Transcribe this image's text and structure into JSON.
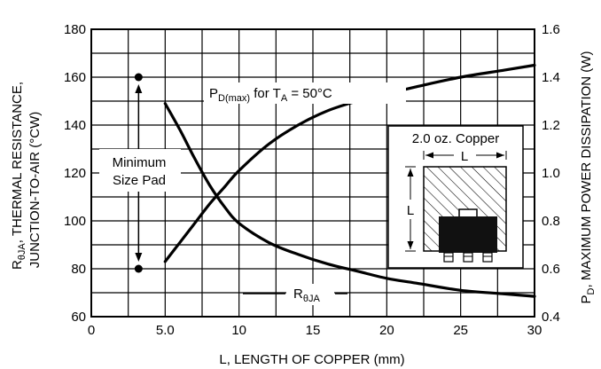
{
  "chart_data": {
    "type": "line",
    "xlabel": "L, LENGTH OF COPPER (mm)",
    "ylabel_left_line1": "RθJA, THERMAL RESISTANCE,",
    "ylabel_left_line2": "JUNCTION-TO-AIR (°CW)",
    "ylabel_right": "PD, MAXIMUM POWER DISSIPATION (W)",
    "xlim": [
      0,
      30
    ],
    "ylim_left": [
      60,
      180
    ],
    "ylim_right": [
      0.4,
      1.6
    ],
    "grid": true,
    "x_ticks": [
      0,
      5,
      10,
      15,
      20,
      25,
      30
    ],
    "x_tick_labels": [
      "0",
      "5.0",
      "10",
      "15",
      "20",
      "25",
      "30"
    ],
    "y_left_ticks": [
      60,
      80,
      100,
      120,
      140,
      160,
      180
    ],
    "y_left_tick_labels": [
      "60",
      "80",
      "100",
      "120",
      "140",
      "160",
      "180"
    ],
    "y_right_ticks": [
      0.4,
      0.6,
      0.8,
      1.0,
      1.2,
      1.4,
      1.6
    ],
    "y_right_tick_labels": [
      "0.4",
      "0.6",
      "0.8",
      "1.0",
      "1.2",
      "1.4",
      "1.6"
    ],
    "series": [
      {
        "name": "RθJA",
        "axis": "left",
        "x": [
          5,
          6,
          7,
          8,
          9,
          10,
          12,
          14,
          16,
          18,
          20,
          22,
          25,
          28,
          30
        ],
        "y": [
          149,
          138,
          126,
          115,
          106,
          99,
          91,
          86,
          82,
          79,
          76,
          74,
          71,
          69.5,
          68.5
        ]
      },
      {
        "name": "PD(max) for TA = 50°C",
        "axis": "right",
        "x": [
          5,
          6,
          7,
          8,
          9,
          10,
          12,
          14,
          16,
          18,
          20,
          22,
          25,
          28,
          30
        ],
        "y": [
          0.63,
          0.71,
          0.79,
          0.87,
          0.94,
          1.01,
          1.12,
          1.2,
          1.26,
          1.3,
          1.33,
          1.36,
          1.4,
          1.43,
          1.45
        ]
      }
    ],
    "annotations": {
      "pd_label": "PD(max) for TA = 50°C",
      "rja_label": "RθJA",
      "min_pad_line1": "Minimum",
      "min_pad_line2": "Size Pad",
      "min_pad_x": 3.2,
      "min_pad_y_top": 160,
      "min_pad_y_bottom": 80,
      "inset_title": "2.0 oz. Copper",
      "inset_dim_h": "L",
      "inset_dim_v": "L"
    }
  }
}
